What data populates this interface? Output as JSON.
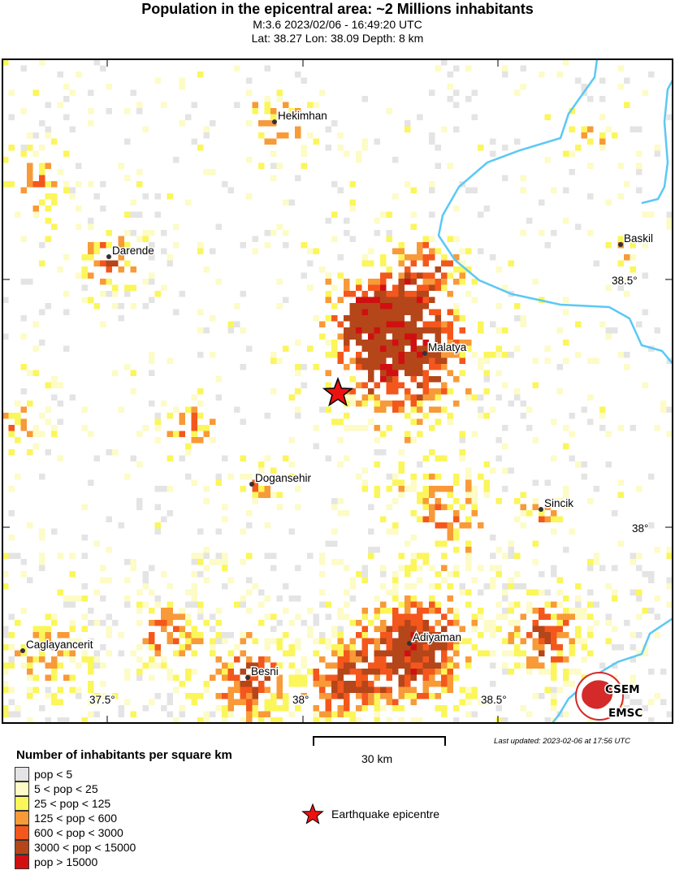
{
  "header": {
    "title": "Population in the epicentral area: ~2 Millions inhabitants",
    "event": "M:3.6 2023/02/06 - 16:49:20 UTC",
    "location": "Lat: 38.27 Lon: 38.09 Depth: 8 km"
  },
  "map": {
    "cities": [
      "Hekimhan",
      "Darende",
      "Baskil",
      "Malatya",
      "Dogansehir",
      "Sincik",
      "Caglayancerit",
      "Adiyaman",
      "Besni"
    ],
    "lat_ticks": [
      "38.5°",
      "38°"
    ],
    "lon_ticks": [
      "37.5°",
      "38°",
      "38.5°"
    ],
    "river_color": "#5bc8f5",
    "epicentre_color": "#ee1111",
    "logo": "CSEM EMSC"
  },
  "legend": {
    "title": "Number of inhabitants per square km",
    "classes": [
      {
        "label": "pop < 5",
        "color": "#e4e4e4"
      },
      {
        "label": "5 < pop < 25",
        "color": "#fdfbc6"
      },
      {
        "label": "25 < pop < 125",
        "color": "#fbf65a"
      },
      {
        "label": "125 < pop < 600",
        "color": "#f89a38"
      },
      {
        "label": "600 < pop < 3000",
        "color": "#f4571c"
      },
      {
        "label": "3000 < pop < 15000",
        "color": "#b4461a"
      },
      {
        "label": "pop > 15000",
        "color": "#d01010"
      }
    ],
    "epicentre_label": "Earthquake epicentre",
    "scale_label": "30 km",
    "updated": "Last updated: 2023-02-06 at 17:56 UTC"
  }
}
